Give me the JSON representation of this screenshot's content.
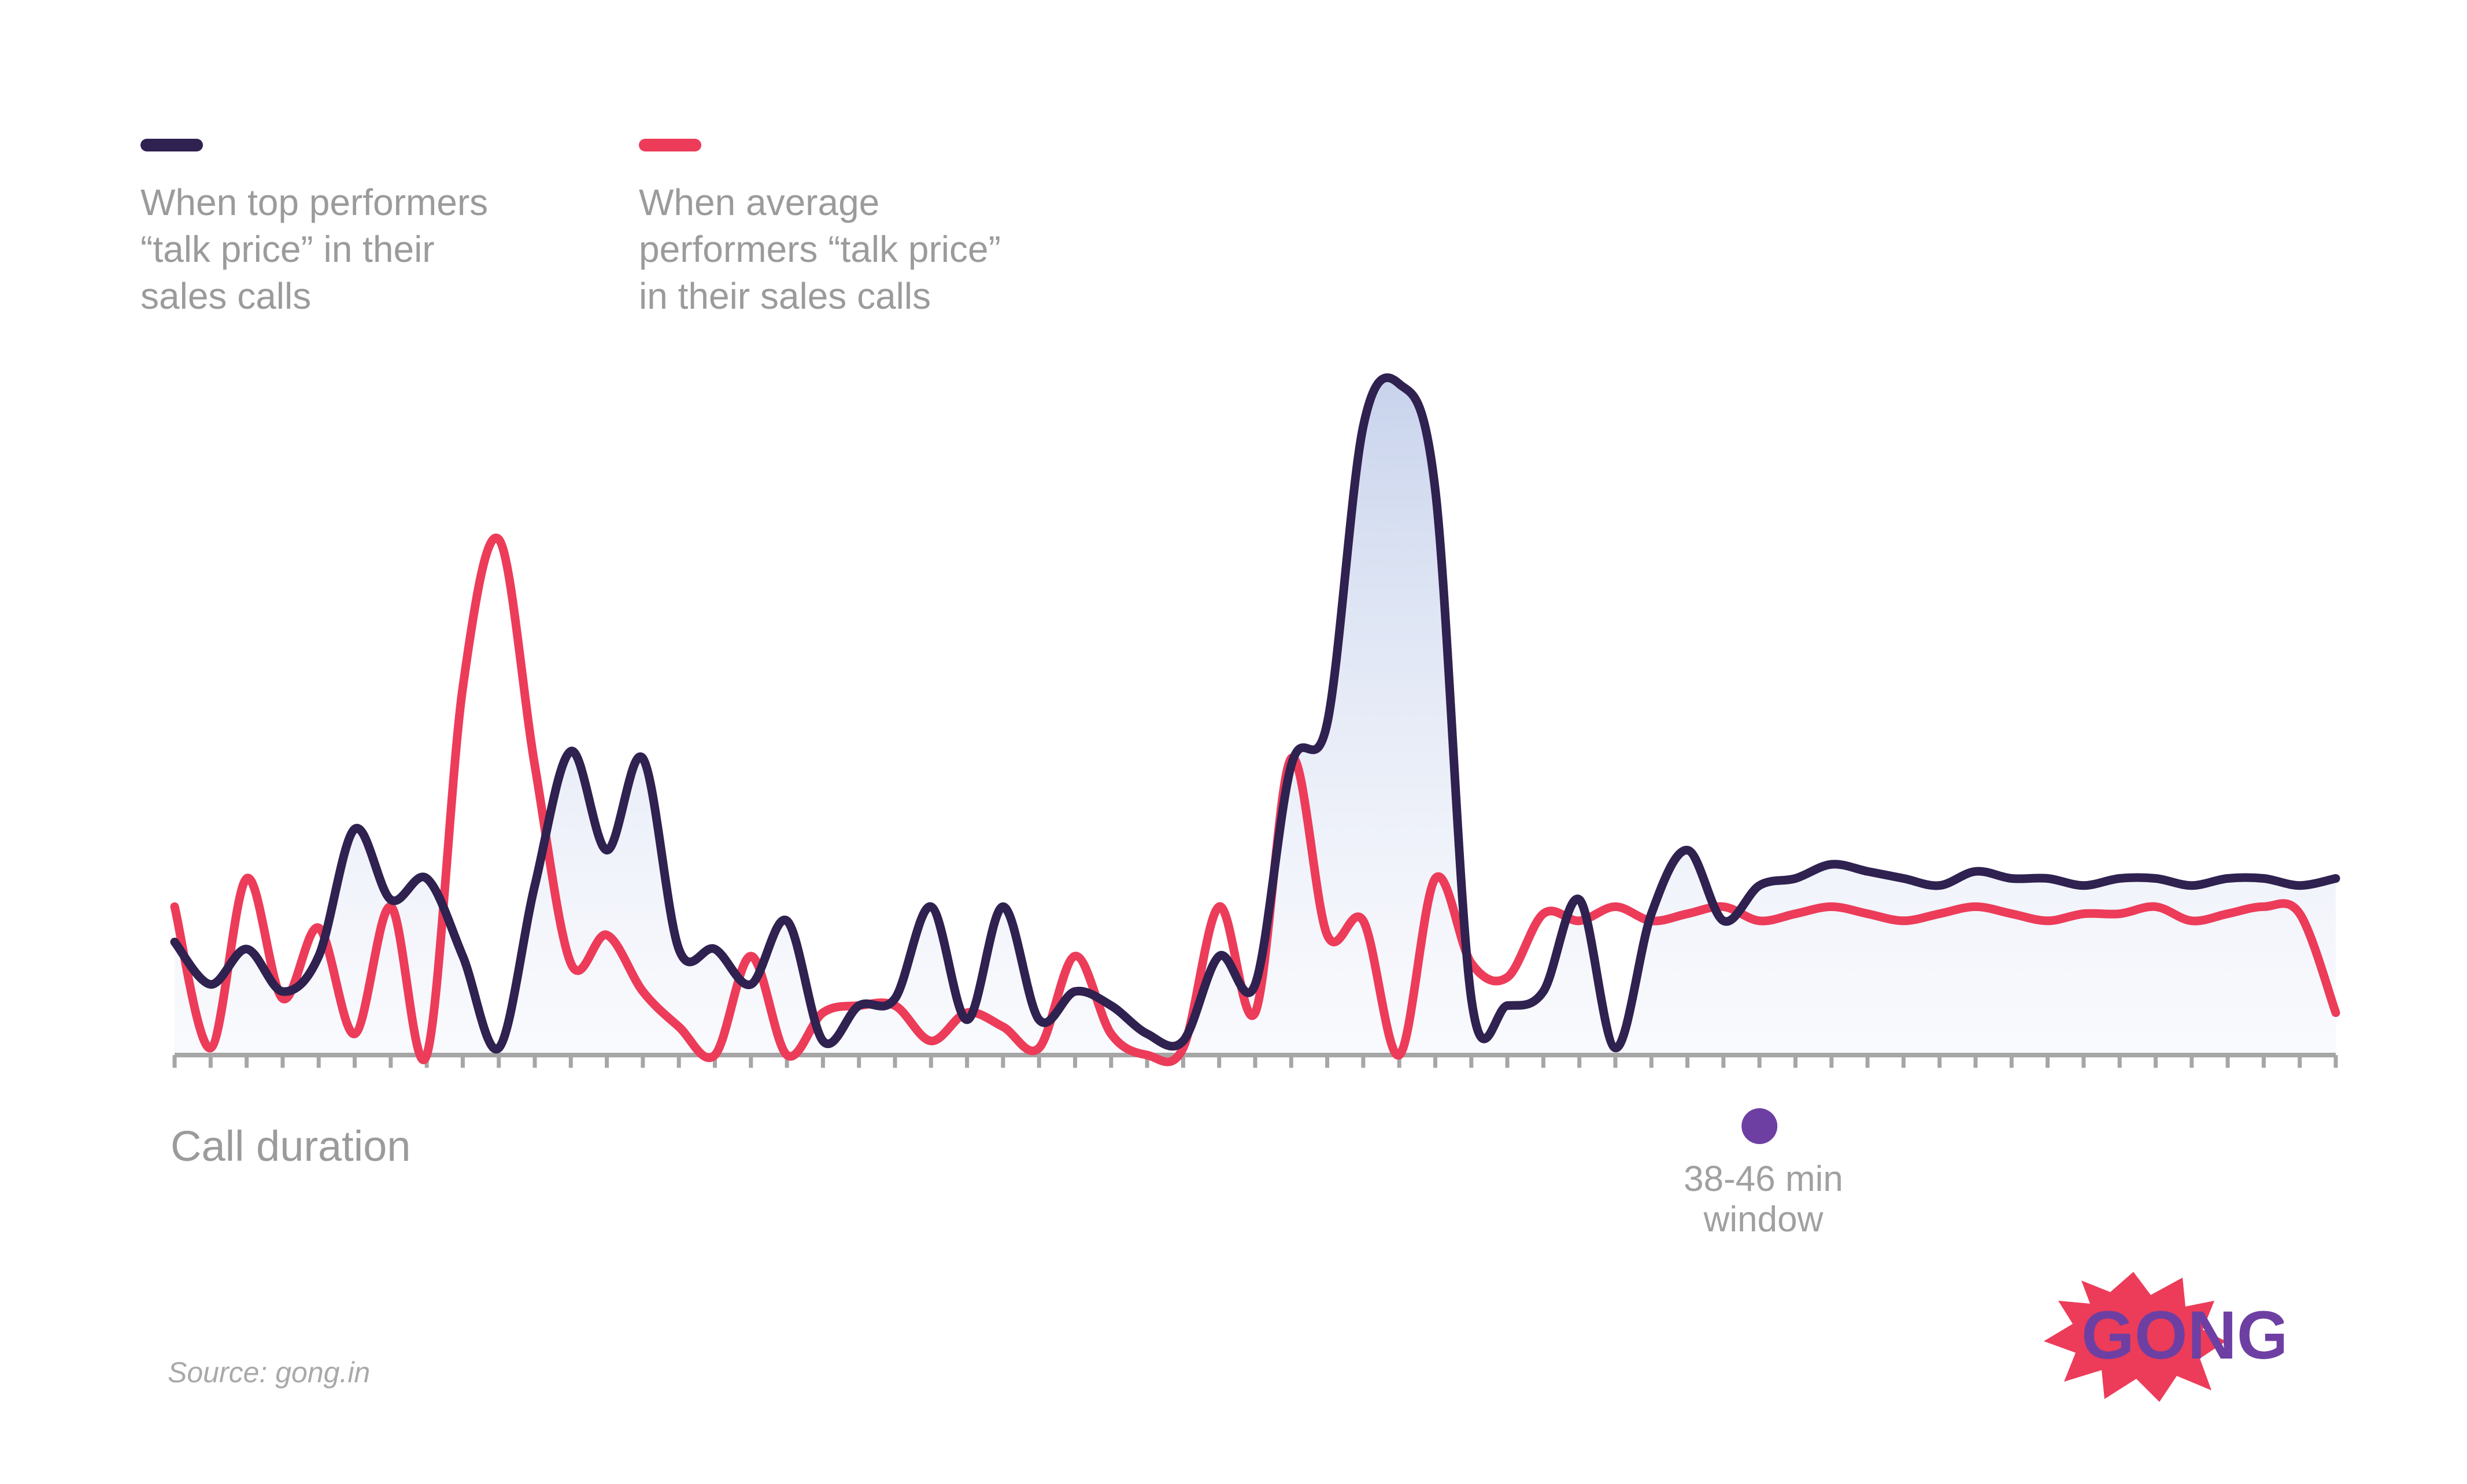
{
  "legend": [
    {
      "name": "top",
      "text": "When top performers\n“talk price” in their\nsales calls",
      "color": "#2f2150"
    },
    {
      "name": "average",
      "text": "When average\nperformers “talk price”\nin their sales calls",
      "color": "#ec3c59"
    }
  ],
  "chart_data": {
    "type": "line",
    "title": "",
    "xlabel": "Call duration",
    "ylabel": "",
    "x_units": "call duration (index, 0-60)",
    "xlim": [
      0,
      60
    ],
    "ylim": [
      0,
      100
    ],
    "highlight": {
      "label": "38-46 min\nwindow",
      "x": 44.0
    },
    "series": [
      {
        "name": "When top performers “talk price” in their sales calls",
        "color": "#2f2150",
        "fill": "#c8d3ec",
        "x": [
          0,
          1,
          2,
          3,
          4,
          5,
          6,
          7,
          8,
          9,
          10,
          11,
          12,
          13,
          14,
          15,
          16,
          17,
          18,
          19,
          20,
          21,
          22,
          23,
          24,
          25,
          26,
          27,
          28,
          29,
          30,
          31,
          32,
          33,
          34,
          35,
          36,
          37,
          38,
          39,
          40,
          41,
          42,
          43,
          44,
          45,
          46,
          47,
          48,
          49,
          50,
          51,
          52,
          53,
          54,
          55,
          56,
          57,
          58,
          59,
          60
        ],
        "values": [
          16,
          10,
          15,
          9,
          14,
          32,
          22,
          25,
          14,
          1,
          24,
          43,
          29,
          42,
          15,
          15,
          10,
          19,
          2,
          7,
          8,
          21,
          5,
          21,
          5,
          9,
          7,
          3,
          2,
          14,
          10,
          41,
          47,
          89,
          95,
          80,
          8,
          7,
          9,
          22,
          1,
          20,
          29,
          19,
          24,
          25,
          27,
          26,
          25,
          24,
          26,
          25,
          25,
          24,
          25,
          25,
          24,
          25,
          25,
          24,
          25
        ]
      },
      {
        "name": "When average performers “talk price” in their sales calls",
        "color": "#ec3c59",
        "x": [
          0,
          1,
          2,
          3,
          4,
          5,
          6,
          7,
          8,
          9,
          10,
          11,
          12,
          13,
          14,
          15,
          16,
          17,
          18,
          19,
          20,
          21,
          22,
          23,
          24,
          25,
          26,
          27,
          28,
          29,
          30,
          31,
          32,
          33,
          34,
          35,
          36,
          37,
          38,
          39,
          40,
          41,
          42,
          43,
          44,
          45,
          46,
          47,
          48,
          49,
          50,
          51,
          52,
          53,
          54,
          55,
          56,
          57,
          58,
          59,
          60
        ],
        "values": [
          21,
          1,
          25,
          8,
          18,
          3,
          21,
          0,
          52,
          73,
          41,
          13,
          17,
          9,
          4,
          0,
          14,
          0,
          6,
          7,
          7,
          2,
          6,
          4,
          1,
          14,
          3,
          0,
          1,
          21,
          6,
          42,
          17,
          19,
          0,
          25,
          13,
          11,
          20,
          19,
          21,
          19,
          20,
          21,
          19,
          20,
          21,
          20,
          19,
          20,
          21,
          20,
          19,
          20,
          20,
          21,
          19,
          20,
          21,
          20,
          6
        ]
      }
    ]
  },
  "labels": {
    "axis_title": "Call duration",
    "window": "38-46 min\nwindow",
    "source": "Source: gong.in",
    "logo_text": "GONG",
    "logo_part1": "GO",
    "logo_part2": "NG"
  },
  "colors": {
    "axis": "#a6a6a6",
    "marker": "#6e3fa3",
    "logo_red": "#ec3c59",
    "logo_purple": "#6e3fa3"
  }
}
